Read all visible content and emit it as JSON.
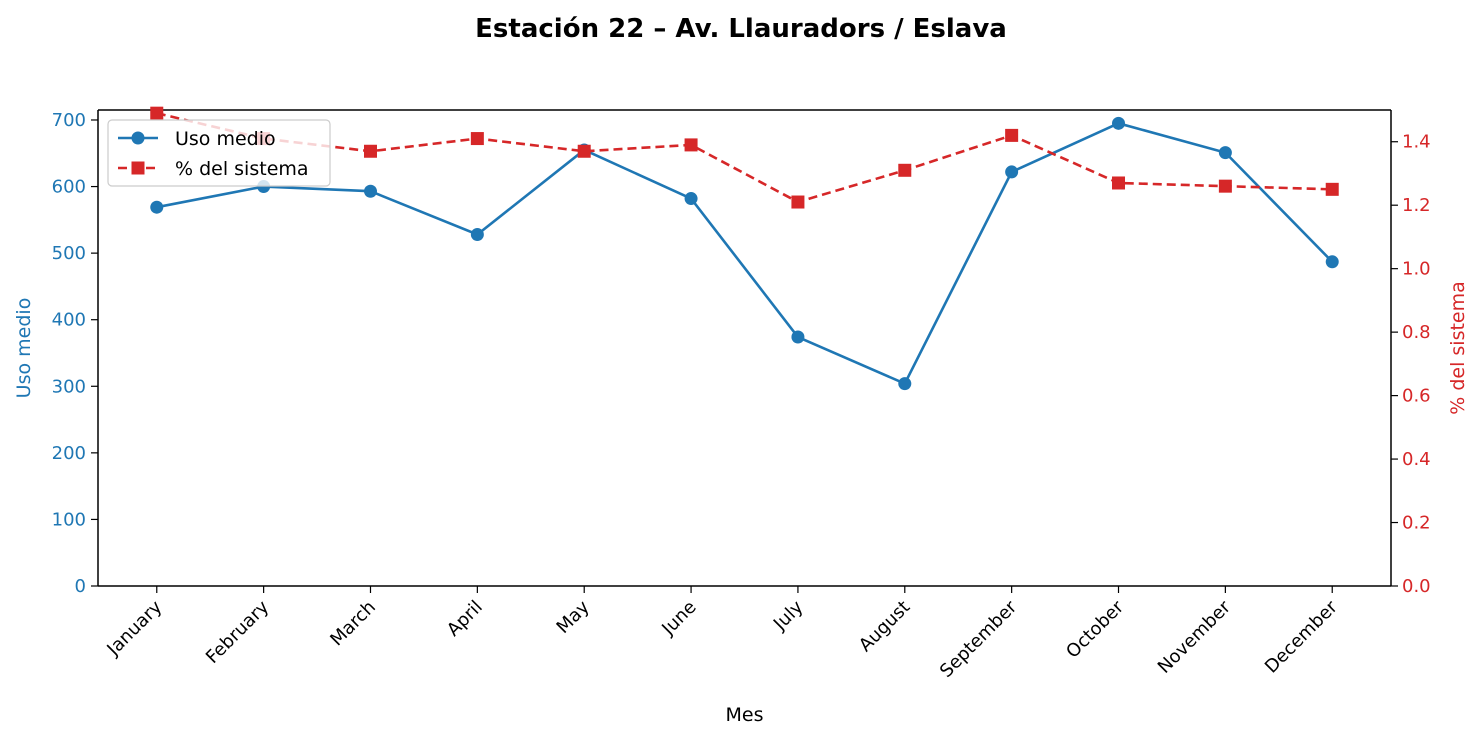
{
  "chart_data": {
    "type": "line",
    "title": "Estación 22 – Av. Llauradors / Eslava",
    "xlabel": "Mes",
    "ylabel_left": "Uso medio",
    "ylabel_right": "% del sistema",
    "categories": [
      "January",
      "February",
      "March",
      "April",
      "May",
      "June",
      "July",
      "August",
      "September",
      "October",
      "November",
      "December"
    ],
    "y_left_ticks": [
      0,
      100,
      200,
      300,
      400,
      500,
      600,
      700
    ],
    "y_right_ticks": [
      "0.0",
      "0.2",
      "0.4",
      "0.6",
      "0.8",
      "1.0",
      "1.2",
      "1.4"
    ],
    "ylim_left": [
      0,
      715
    ],
    "ylim_right": [
      0,
      1.5
    ],
    "series": [
      {
        "name": "Uso medio",
        "axis": "left",
        "color": "#1f77b4",
        "marker": "circle",
        "line_style": "solid",
        "values": [
          569,
          600,
          593,
          528,
          655,
          582,
          374,
          304,
          622,
          695,
          651,
          487
        ]
      },
      {
        "name": "% del sistema",
        "axis": "right",
        "color": "#d62728",
        "marker": "square",
        "line_style": "dashed",
        "values": [
          1.49,
          1.41,
          1.37,
          1.41,
          1.37,
          1.39,
          1.21,
          1.31,
          1.42,
          1.27,
          1.26,
          1.25
        ]
      }
    ],
    "legend": {
      "position": "top-left",
      "entries": [
        "Uso medio",
        "% del sistema"
      ]
    },
    "grid": false
  }
}
